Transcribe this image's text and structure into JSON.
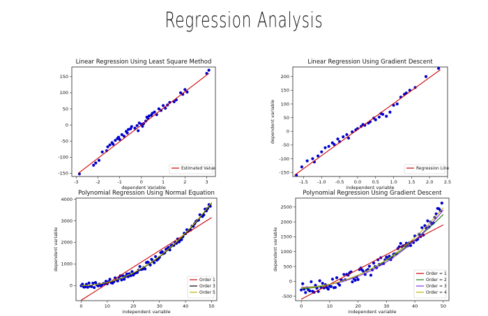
{
  "page_title": "Regression Analysis",
  "colors": {
    "points": "#0000cc",
    "red": "#cc0000",
    "black": "#000000",
    "green": "#1a7a1a",
    "purple": "#8a2be2",
    "olive": "#b5b500"
  },
  "chart_data": [
    {
      "id": "c1",
      "type": "scatter",
      "title": "Linear Regression Using Least Square Method",
      "xlabel": "dependent Variable",
      "ylabel": "",
      "xlim": [
        -3.2,
        3.4
      ],
      "ylim": [
        -160,
        180
      ],
      "xticks": [
        -3,
        -2,
        -1,
        0,
        1,
        2,
        3
      ],
      "yticks": [
        -150,
        -100,
        -50,
        0,
        50,
        100,
        150
      ],
      "legend_position": "bottom-right",
      "points": {
        "x": [
          -2.85,
          -2.2,
          -2.1,
          -1.95,
          -1.8,
          -1.6,
          -1.55,
          -1.45,
          -1.35,
          -1.3,
          -1.2,
          -1.1,
          -1.05,
          -1.0,
          -0.9,
          -0.8,
          -0.7,
          -0.6,
          -0.5,
          -0.45,
          -0.3,
          -0.2,
          -0.1,
          0.0,
          0.1,
          0.2,
          0.3,
          0.35,
          0.45,
          0.5,
          0.6,
          0.7,
          0.8,
          0.9,
          1.0,
          1.1,
          1.2,
          1.3,
          1.5,
          1.6,
          1.8,
          1.9,
          2.0,
          2.1,
          3.0,
          3.1,
          0.05,
          -0.15,
          0.25,
          -0.65
        ],
        "y": [
          -152,
          -125,
          -118,
          -110,
          -84,
          -80,
          -68,
          -62,
          -55,
          -60,
          -48,
          -42,
          -38,
          -45,
          -30,
          -35,
          -20,
          -14,
          -12,
          -5,
          -10,
          -2,
          6,
          2,
          4,
          12,
          20,
          28,
          30,
          36,
          40,
          32,
          50,
          45,
          60,
          52,
          62,
          70,
          72,
          78,
          100,
          95,
          110,
          102,
          160,
          170,
          -4,
          -18,
          24,
          -25
        ]
      },
      "lines": [
        {
          "name": "Estimated Value",
          "color": "red",
          "x": [
            -2.9,
            3.1
          ],
          "y": [
            -150,
            160
          ]
        }
      ],
      "legend": [
        "Estimated Value"
      ]
    },
    {
      "id": "c2",
      "type": "scatter",
      "title": "Linear Regression Using Gradient Descent",
      "xlabel": "independent variable",
      "ylabel": "dependent variable",
      "xlim": [
        -1.8,
        2.5
      ],
      "ylim": [
        -165,
        235
      ],
      "xticks": [
        -1.5,
        -1.0,
        -0.5,
        0.0,
        0.5,
        1.0,
        1.5,
        2.0,
        2.5
      ],
      "xtick_labels": [
        "-1.5",
        "-1.0",
        "-0.5",
        "0.0",
        "0.5",
        "1.0",
        "1.5",
        "2.0",
        "2.5"
      ],
      "yticks": [
        -150,
        -100,
        -50,
        0,
        50,
        100,
        150,
        200
      ],
      "legend_position": "bottom-right",
      "points": {
        "x": [
          -1.7,
          -1.55,
          -1.4,
          -1.25,
          -1.2,
          -1.0,
          -0.9,
          -0.8,
          -0.7,
          -0.65,
          -0.55,
          -0.5,
          -0.4,
          -0.3,
          -0.25,
          -0.15,
          -0.05,
          0.0,
          0.1,
          0.2,
          0.3,
          0.35,
          0.45,
          0.5,
          0.6,
          0.7,
          0.8,
          0.9,
          1.0,
          1.1,
          1.2,
          1.3,
          1.35,
          1.45,
          1.6,
          1.9,
          2.25,
          0.65,
          -1.1,
          0.15
        ],
        "y": [
          -160,
          -130,
          -108,
          -100,
          -112,
          -75,
          -60,
          -55,
          -42,
          -48,
          -28,
          -38,
          -20,
          -12,
          -25,
          -2,
          5,
          10,
          18,
          22,
          30,
          35,
          48,
          42,
          52,
          62,
          55,
          70,
          95,
          100,
          125,
          135,
          140,
          150,
          160,
          200,
          230,
          65,
          -90,
          25
        ]
      },
      "lines": [
        {
          "name": "Regression Line",
          "color": "red",
          "x": [
            -1.75,
            2.3
          ],
          "y": [
            -160,
            225
          ]
        }
      ],
      "legend": [
        "Regression Line"
      ]
    },
    {
      "id": "c3",
      "type": "scatter",
      "title": "Polynomial Regression Using Normal Equation",
      "xlabel": "independent variable",
      "ylabel": "dependent variable",
      "xlim": [
        -2,
        52
      ],
      "ylim": [
        -700,
        4050
      ],
      "xticks": [
        0,
        10,
        20,
        30,
        40,
        50
      ],
      "yticks": [
        0,
        1000,
        2000,
        3000,
        4000
      ],
      "legend_position": "bottom-right",
      "lines": [
        {
          "name": "Order 1",
          "color": "red",
          "x": [
            0,
            50
          ],
          "y": [
            -680,
            3150
          ]
        },
        {
          "name": "Order 3",
          "color": "black",
          "poly": [
            0,
            0,
            1.4,
            0.0025
          ]
        },
        {
          "name": "Order 5",
          "color": "olive",
          "poly": [
            0,
            0,
            1.45,
            0.0018
          ]
        }
      ],
      "legend": [
        "Order 1",
        "Order 3",
        "Order 5"
      ]
    },
    {
      "id": "c4",
      "type": "scatter",
      "title": "Polynomial Regression Using Gradient Descent",
      "xlabel": "independent variable",
      "ylabel": "dependent variable",
      "xlim": [
        -2,
        52
      ],
      "ylim": [
        -650,
        2800
      ],
      "xticks": [
        0,
        10,
        20,
        30,
        40,
        50
      ],
      "yticks": [
        -500,
        0,
        500,
        1000,
        1500,
        2000,
        2500
      ],
      "legend_position": "bottom-right",
      "lines": [
        {
          "name": "Order = 1",
          "color": "red",
          "x": [
            0,
            50
          ],
          "y": [
            -600,
            1900
          ]
        },
        {
          "name": "Order = 2",
          "color": "green",
          "poly": [
            -250,
            5,
            0.9
          ]
        },
        {
          "name": "Order = 3",
          "color": "purple",
          "poly": [
            -200,
            2,
            0.7,
            0.006
          ]
        },
        {
          "name": "Order = 4",
          "color": "olive",
          "poly": [
            -220,
            4,
            0.8,
            0.004
          ]
        }
      ],
      "legend": [
        "Order = 1",
        "Order = 2",
        "Order = 3",
        "Order = 4"
      ]
    }
  ]
}
